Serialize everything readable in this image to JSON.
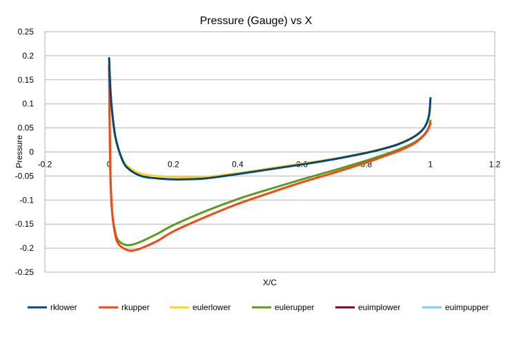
{
  "chart_data": {
    "type": "line",
    "title": "Pressure (Gauge) vs X",
    "xlabel": "X/C",
    "ylabel": "Pressure",
    "xlim": [
      -0.2,
      1.2
    ],
    "ylim": [
      -0.25,
      0.25
    ],
    "x_ticks": [
      "-0.2",
      "0",
      "0.2",
      "0.4",
      "0.6",
      "0.8",
      "1",
      "1.2"
    ],
    "y_ticks": [
      "0.25",
      "0.2",
      "0.15",
      "0.1",
      "0.05",
      "0",
      "-0.05",
      "-0.1",
      "-0.15",
      "-0.2",
      "-0.25"
    ],
    "grid": "horizontal",
    "legend_position": "bottom",
    "series": [
      {
        "name": "rklower",
        "color": "#004586",
        "x": [
          0,
          0.002,
          0.005,
          0.01,
          0.02,
          0.04,
          0.06,
          0.1,
          0.15,
          0.2,
          0.23,
          0.3,
          0.4,
          0.5,
          0.6,
          0.7,
          0.8,
          0.85,
          0.9,
          0.95,
          0.98,
          0.995,
          1.0
        ],
        "y": [
          0.195,
          0.16,
          0.12,
          0.08,
          0.03,
          -0.015,
          -0.035,
          -0.05,
          -0.055,
          -0.057,
          -0.057,
          -0.055,
          -0.046,
          -0.036,
          -0.026,
          -0.015,
          -0.002,
          0.006,
          0.016,
          0.032,
          0.05,
          0.075,
          0.112
        ]
      },
      {
        "name": "rkupper",
        "color": "#ff420e",
        "x": [
          0,
          0.001,
          0.003,
          0.005,
          0.01,
          0.02,
          0.03,
          0.05,
          0.07,
          0.1,
          0.15,
          0.2,
          0.3,
          0.4,
          0.5,
          0.6,
          0.7,
          0.8,
          0.85,
          0.9,
          0.95,
          0.98,
          0.995,
          1.0
        ],
        "y": [
          0.18,
          0.1,
          0.0,
          -0.07,
          -0.13,
          -0.175,
          -0.192,
          -0.202,
          -0.205,
          -0.2,
          -0.185,
          -0.165,
          -0.135,
          -0.108,
          -0.085,
          -0.063,
          -0.043,
          -0.022,
          -0.01,
          0.002,
          0.018,
          0.035,
          0.05,
          0.06
        ]
      },
      {
        "name": "eulerlower",
        "color": "#ffd320",
        "x": [
          0,
          0.002,
          0.005,
          0.01,
          0.02,
          0.04,
          0.06,
          0.1,
          0.15,
          0.2,
          0.23,
          0.3,
          0.4,
          0.5,
          0.6,
          0.7,
          0.8,
          0.85,
          0.9,
          0.95,
          0.98,
          0.995,
          1.0
        ],
        "y": [
          0.19,
          0.155,
          0.115,
          0.075,
          0.027,
          -0.012,
          -0.031,
          -0.045,
          -0.05,
          -0.052,
          -0.053,
          -0.052,
          -0.044,
          -0.034,
          -0.024,
          -0.014,
          -0.001,
          0.007,
          0.017,
          0.033,
          0.05,
          0.07,
          0.095
        ]
      },
      {
        "name": "eulerupper",
        "color": "#579d1c",
        "x": [
          0,
          0.001,
          0.003,
          0.005,
          0.01,
          0.02,
          0.03,
          0.05,
          0.07,
          0.1,
          0.15,
          0.2,
          0.3,
          0.4,
          0.5,
          0.6,
          0.7,
          0.8,
          0.85,
          0.9,
          0.95,
          0.98,
          0.995,
          1.0
        ],
        "y": [
          0.175,
          0.09,
          -0.01,
          -0.075,
          -0.13,
          -0.17,
          -0.185,
          -0.193,
          -0.193,
          -0.186,
          -0.17,
          -0.152,
          -0.123,
          -0.098,
          -0.077,
          -0.057,
          -0.038,
          -0.018,
          -0.007,
          0.005,
          0.02,
          0.036,
          0.052,
          0.065
        ]
      },
      {
        "name": "euimplower",
        "color": "#7e0021",
        "x": [],
        "y": []
      },
      {
        "name": "euimpupper",
        "color": "#83caff",
        "x": [],
        "y": []
      }
    ]
  }
}
